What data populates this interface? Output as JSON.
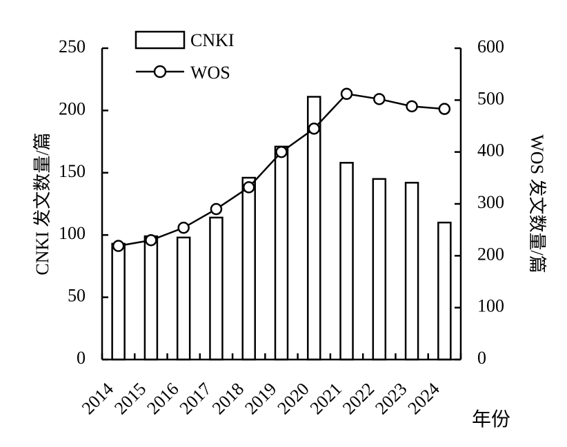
{
  "chart_data": {
    "type": "bar+line",
    "categories": [
      "2014",
      "2015",
      "2016",
      "2017",
      "2018",
      "2019",
      "2020",
      "2021",
      "2022",
      "2023",
      "2024"
    ],
    "series": [
      {
        "name": "CNKI",
        "type": "bar",
        "axis": "left",
        "values": [
          93,
          99,
          98,
          114,
          146,
          171,
          211,
          158,
          145,
          142,
          110
        ]
      },
      {
        "name": "WOS",
        "type": "line",
        "axis": "right",
        "values": [
          219,
          230,
          254,
          290,
          332,
          400,
          445,
          512,
          502,
          488,
          483
        ]
      }
    ],
    "xlabel": "年份",
    "ylabel_left": "CNKI 发文数量/篇",
    "ylabel_right": "WOS 发文数量/篇",
    "ylim_left": [
      0,
      250
    ],
    "ylim_right": [
      0,
      600
    ],
    "yticks_left": [
      "0",
      "50",
      "100",
      "150",
      "200",
      "250"
    ],
    "yticks_right": [
      "0",
      "100",
      "200",
      "300",
      "400",
      "500",
      "600"
    ],
    "grid": false,
    "legend_position": "top-left",
    "colors": {
      "bar_fill": "#ffffff",
      "stroke": "#000000"
    }
  }
}
